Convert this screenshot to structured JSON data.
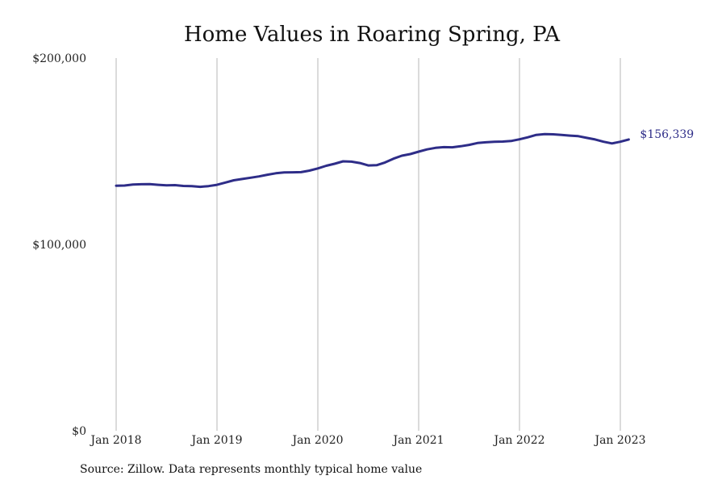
{
  "chart_data": {
    "type": "line",
    "title": "Home Values in Roaring Spring, PA",
    "xlabel": "",
    "ylabel": "",
    "ylim": [
      0,
      200000
    ],
    "y_ticks": [
      {
        "value": 0,
        "label": "$0"
      },
      {
        "value": 100000,
        "label": "$100,000"
      },
      {
        "value": 200000,
        "label": "$200,000"
      }
    ],
    "x_ticks": [
      "Jan 2018",
      "Jan 2019",
      "Jan 2020",
      "Jan 2021",
      "Jan 2022",
      "Jan 2023"
    ],
    "x_range": [
      "2018-01",
      "2023-02"
    ],
    "grid": "vertical",
    "series": [
      {
        "color": "#2e2d88",
        "end_label": "$156,339",
        "points": [
          [
            "2018-01",
            131500
          ],
          [
            "2018-02",
            131600
          ],
          [
            "2018-03",
            132100
          ],
          [
            "2018-04",
            132300
          ],
          [
            "2018-05",
            132400
          ],
          [
            "2018-06",
            132000
          ],
          [
            "2018-07",
            131700
          ],
          [
            "2018-08",
            131800
          ],
          [
            "2018-09",
            131400
          ],
          [
            "2018-10",
            131300
          ],
          [
            "2018-11",
            130900
          ],
          [
            "2018-12",
            131300
          ],
          [
            "2019-01",
            132000
          ],
          [
            "2019-02",
            133200
          ],
          [
            "2019-03",
            134400
          ],
          [
            "2019-04",
            135100
          ],
          [
            "2019-05",
            135800
          ],
          [
            "2019-06",
            136500
          ],
          [
            "2019-07",
            137400
          ],
          [
            "2019-08",
            138200
          ],
          [
            "2019-09",
            138600
          ],
          [
            "2019-10",
            138700
          ],
          [
            "2019-11",
            138800
          ],
          [
            "2019-12",
            139600
          ],
          [
            "2020-01",
            140800
          ],
          [
            "2020-02",
            142200
          ],
          [
            "2020-03",
            143300
          ],
          [
            "2020-04",
            144600
          ],
          [
            "2020-05",
            144400
          ],
          [
            "2020-06",
            143700
          ],
          [
            "2020-07",
            142400
          ],
          [
            "2020-08",
            142500
          ],
          [
            "2020-09",
            144000
          ],
          [
            "2020-10",
            146000
          ],
          [
            "2020-11",
            147600
          ],
          [
            "2020-12",
            148500
          ],
          [
            "2021-01",
            149800
          ],
          [
            "2021-02",
            151000
          ],
          [
            "2021-03",
            151800
          ],
          [
            "2021-04",
            152200
          ],
          [
            "2021-05",
            152100
          ],
          [
            "2021-06",
            152700
          ],
          [
            "2021-07",
            153400
          ],
          [
            "2021-08",
            154400
          ],
          [
            "2021-09",
            154800
          ],
          [
            "2021-10",
            155100
          ],
          [
            "2021-11",
            155200
          ],
          [
            "2021-12",
            155500
          ],
          [
            "2022-01",
            156400
          ],
          [
            "2022-02",
            157500
          ],
          [
            "2022-03",
            158800
          ],
          [
            "2022-04",
            159200
          ],
          [
            "2022-05",
            159100
          ],
          [
            "2022-06",
            158800
          ],
          [
            "2022-07",
            158400
          ],
          [
            "2022-08",
            158100
          ],
          [
            "2022-09",
            157200
          ],
          [
            "2022-10",
            156300
          ],
          [
            "2022-11",
            155100
          ],
          [
            "2022-12",
            154200
          ],
          [
            "2023-01",
            155100
          ],
          [
            "2023-02",
            156339
          ]
        ]
      }
    ],
    "source_note": "Source: Zillow. Data represents monthly typical home value"
  }
}
